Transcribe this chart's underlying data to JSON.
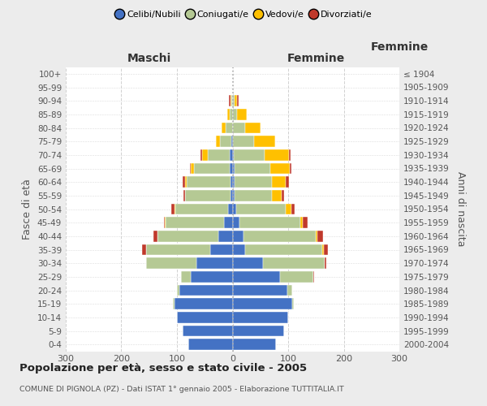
{
  "age_groups": [
    "0-4",
    "5-9",
    "10-14",
    "15-19",
    "20-24",
    "25-29",
    "30-34",
    "35-39",
    "40-44",
    "45-49",
    "50-54",
    "55-59",
    "60-64",
    "65-69",
    "70-74",
    "75-79",
    "80-84",
    "85-89",
    "90-94",
    "95-99",
    "100+"
  ],
  "birth_years": [
    "2000-2004",
    "1995-1999",
    "1990-1994",
    "1985-1989",
    "1980-1984",
    "1975-1979",
    "1970-1974",
    "1965-1969",
    "1960-1964",
    "1955-1959",
    "1950-1954",
    "1945-1949",
    "1940-1944",
    "1935-1939",
    "1930-1934",
    "1925-1929",
    "1920-1924",
    "1915-1919",
    "1910-1914",
    "1905-1909",
    "≤ 1904"
  ],
  "maschi": {
    "celibi": [
      80,
      90,
      100,
      105,
      95,
      75,
      65,
      40,
      25,
      15,
      8,
      3,
      3,
      5,
      5,
      2,
      0,
      0,
      0,
      0,
      0
    ],
    "coniugati": [
      0,
      0,
      0,
      2,
      5,
      18,
      90,
      115,
      110,
      105,
      95,
      82,
      80,
      65,
      40,
      20,
      12,
      5,
      2,
      0,
      0
    ],
    "vedovi": [
      0,
      0,
      0,
      0,
      0,
      0,
      0,
      0,
      0,
      2,
      2,
      1,
      2,
      5,
      10,
      8,
      8,
      4,
      2,
      0,
      0
    ],
    "divorziati": [
      0,
      0,
      0,
      0,
      0,
      0,
      0,
      8,
      8,
      2,
      5,
      3,
      5,
      2,
      2,
      0,
      0,
      0,
      3,
      0,
      0
    ]
  },
  "femmine": {
    "nubili": [
      78,
      92,
      100,
      108,
      98,
      85,
      55,
      22,
      20,
      12,
      6,
      3,
      3,
      3,
      2,
      0,
      0,
      0,
      0,
      0,
      0
    ],
    "coniugate": [
      0,
      0,
      0,
      2,
      10,
      60,
      110,
      140,
      130,
      110,
      90,
      68,
      68,
      65,
      55,
      38,
      22,
      8,
      3,
      0,
      0
    ],
    "vedove": [
      0,
      0,
      0,
      0,
      0,
      0,
      0,
      2,
      3,
      5,
      10,
      18,
      25,
      35,
      45,
      38,
      28,
      18,
      5,
      0,
      0
    ],
    "divorziate": [
      0,
      0,
      0,
      0,
      0,
      2,
      3,
      8,
      10,
      8,
      5,
      3,
      5,
      3,
      2,
      0,
      0,
      0,
      3,
      0,
      0
    ]
  },
  "colors": {
    "celibi_nubili": "#4472c4",
    "coniugati": "#b5c994",
    "vedovi": "#ffc000",
    "divorziati": "#c0392b"
  },
  "title": "Popolazione per età, sesso e stato civile - 2005",
  "subtitle": "COMUNE DI PIGNOLA (PZ) - Dati ISTAT 1° gennaio 2005 - Elaborazione TUTTITALIA.IT",
  "maschi_label": "Maschi",
  "femmine_label": "Femmine",
  "ylabel_left": "Fasce di età",
  "ylabel_right": "Anni di nascita",
  "xlim": 300,
  "xticks": [
    -300,
    -200,
    -100,
    0,
    100,
    200,
    300
  ],
  "bg_color": "#ececec",
  "plot_bg": "#ffffff",
  "legend_labels": [
    "Celibi/Nubili",
    "Coniugati/e",
    "Vedovi/e",
    "Divorziati/e"
  ],
  "title_fontsize": 9,
  "subtitle_fontsize": 7
}
